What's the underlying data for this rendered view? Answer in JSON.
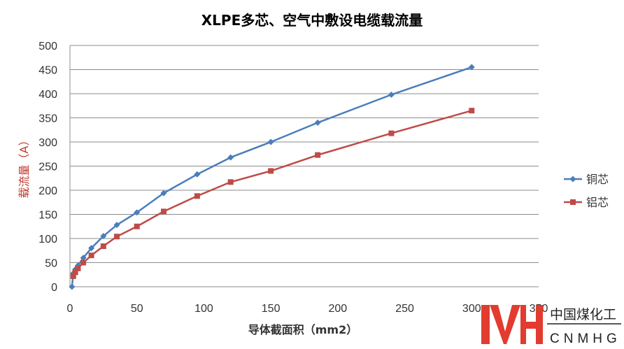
{
  "chart_data": {
    "type": "line",
    "title": "XLPE多芯、空气中敷设电缆载流量",
    "xlabel": "导体截面积（mm2）",
    "ylabel": "载流量（A）",
    "xlim": [
      0,
      350
    ],
    "ylim": [
      0,
      500
    ],
    "xticks": [
      0,
      50,
      100,
      150,
      200,
      250,
      300,
      350
    ],
    "yticks": [
      0,
      50,
      100,
      150,
      200,
      250,
      300,
      350,
      400,
      450,
      500
    ],
    "grid": true,
    "legend_position": "right",
    "series": [
      {
        "name": "铜芯",
        "color": "#4a7ebb",
        "marker": "diamond",
        "x": [
          1.5,
          2.5,
          4,
          6,
          10,
          16,
          25,
          35,
          50,
          70,
          95,
          120,
          150,
          185,
          240,
          300
        ],
        "y": [
          0,
          28,
          36,
          44,
          60,
          80,
          105,
          128,
          154,
          194,
          233,
          268,
          300,
          340,
          398,
          455
        ]
      },
      {
        "name": "铝芯",
        "color": "#be4b48",
        "marker": "square",
        "x": [
          2.5,
          4,
          6,
          10,
          16,
          25,
          35,
          50,
          70,
          95,
          120,
          150,
          185,
          240,
          300
        ],
        "y": [
          22,
          30,
          38,
          50,
          65,
          84,
          104,
          125,
          156,
          188,
          217,
          240,
          273,
          318,
          365
        ]
      }
    ]
  },
  "watermark": {
    "logo_text": "MH",
    "cn": "中国煤化工",
    "en": "CNMHG",
    "color": "#e33b2f"
  }
}
